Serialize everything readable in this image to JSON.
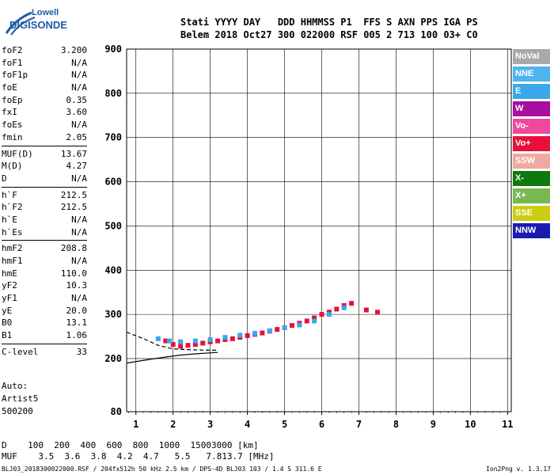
{
  "logo": {
    "line1": "Lowell",
    "line2": "DIGISONDE"
  },
  "header": {
    "labels": "Stati YYYY DAY   DDD HHMMSS P1  FFS S AXN PPS IGA PS",
    "values": "Belem 2018 Oct27 300 022000 RSF 005 2 713 100 03+ C0"
  },
  "params": [
    {
      "name": "foF2",
      "value": "3.200"
    },
    {
      "name": "foF1",
      "value": "N/A"
    },
    {
      "name": "foF1p",
      "value": "N/A"
    },
    {
      "name": "foE",
      "value": "N/A"
    },
    {
      "name": "foEp",
      "value": "0.35"
    },
    {
      "name": "fxI",
      "value": "3.60"
    },
    {
      "name": "foEs",
      "value": "N/A"
    },
    {
      "name": "fmin",
      "value": "2.05"
    },
    {
      "sep": true
    },
    {
      "name": "MUF(D)",
      "value": "13.67"
    },
    {
      "name": "M(D)",
      "value": "4.27"
    },
    {
      "name": "D",
      "value": "N/A"
    },
    {
      "sep": true
    },
    {
      "name": "h`F",
      "value": "212.5"
    },
    {
      "name": "h`F2",
      "value": "212.5"
    },
    {
      "name": "h`E",
      "value": "N/A"
    },
    {
      "name": "h`Es",
      "value": "N/A"
    },
    {
      "sep": true
    },
    {
      "name": "hmF2",
      "value": "208.8"
    },
    {
      "name": "hmF1",
      "value": "N/A"
    },
    {
      "name": "hmE",
      "value": "110.0"
    },
    {
      "name": "yF2",
      "value": "10.3"
    },
    {
      "name": "yF1",
      "value": "N/A"
    },
    {
      "name": "yE",
      "value": "20.0"
    },
    {
      "name": "B0",
      "value": "13.1"
    },
    {
      "name": "B1",
      "value": "1.06"
    },
    {
      "sep": true
    },
    {
      "name": "C-level",
      "value": "33"
    }
  ],
  "auto": [
    "Auto:",
    "Artist5",
    "500200"
  ],
  "legend": [
    {
      "label": "NoVal",
      "color": "#a9a9a9"
    },
    {
      "label": "NNE",
      "color": "#4fb4f0"
    },
    {
      "label": "E",
      "color": "#3aa8ea"
    },
    {
      "label": "W",
      "color": "#a80ea0"
    },
    {
      "label": "Vo-",
      "color": "#f0489a"
    },
    {
      "label": "Vo+",
      "color": "#e8103a"
    },
    {
      "label": "SSW",
      "color": "#f0a9a0"
    },
    {
      "label": "X-",
      "color": "#0e7a0e"
    },
    {
      "label": "X+",
      "color": "#78b850"
    },
    {
      "label": "SSE",
      "color": "#cccc10"
    },
    {
      "label": "NNW",
      "color": "#1a1ab0"
    }
  ],
  "muf_table": {
    "d_label": "D",
    "d_values": [
      "100",
      "200",
      "400",
      "600",
      "800",
      "1000",
      "1500",
      "3000 [km]"
    ],
    "muf_label": "MUF",
    "muf_values": [
      "3.5",
      "3.6",
      "3.8",
      "4.2",
      "4.7",
      "5.5",
      "7.8",
      "13.7 [MHz]"
    ]
  },
  "footer": "BLJ03_2018300022000.RSF / 204fx512h 50 kHz 2.5 km / DPS-4D BLJ03 103 / 1.4 S 311.6 E",
  "version": "Ion2Png v. 1.3.17",
  "chart_data": {
    "type": "scatter",
    "x_ticks": [
      1,
      2,
      3,
      4,
      5,
      6,
      7,
      8,
      9,
      10,
      11
    ],
    "y_ticks": [
      80,
      200,
      300,
      400,
      500,
      600,
      700,
      800,
      900
    ],
    "xlim": [
      0.75,
      11.1
    ],
    "ylim": [
      80,
      900
    ],
    "grid": true,
    "legend_position": "right",
    "traces": [
      {
        "name": "F2 O-trace",
        "color": "#e8103a",
        "points": [
          [
            1.8,
            240
          ],
          [
            2.0,
            232
          ],
          [
            2.2,
            228
          ],
          [
            2.4,
            230
          ],
          [
            2.6,
            232
          ],
          [
            2.8,
            235
          ],
          [
            3.0,
            238
          ],
          [
            3.2,
            240
          ],
          [
            3.4,
            243
          ],
          [
            3.6,
            245
          ],
          [
            3.8,
            248
          ],
          [
            4.0,
            252
          ],
          [
            4.2,
            255
          ],
          [
            4.4,
            258
          ],
          [
            4.6,
            262
          ],
          [
            4.8,
            266
          ],
          [
            5.0,
            270
          ],
          [
            5.2,
            275
          ],
          [
            5.4,
            280
          ],
          [
            5.6,
            285
          ],
          [
            5.8,
            292
          ],
          [
            6.0,
            300
          ],
          [
            6.2,
            305
          ],
          [
            6.4,
            312
          ],
          [
            6.6,
            320
          ],
          [
            6.8,
            325
          ],
          [
            7.2,
            310
          ],
          [
            7.5,
            305
          ]
        ]
      },
      {
        "name": "F2 X-trace",
        "color": "#3aa8ea",
        "points": [
          [
            1.6,
            245
          ],
          [
            1.9,
            240
          ],
          [
            2.2,
            238
          ],
          [
            2.6,
            240
          ],
          [
            3.0,
            243
          ],
          [
            3.4,
            248
          ],
          [
            3.8,
            253
          ],
          [
            4.2,
            257
          ],
          [
            4.6,
            263
          ],
          [
            5.0,
            270
          ],
          [
            5.4,
            276
          ],
          [
            5.8,
            285
          ],
          [
            6.2,
            300
          ],
          [
            6.6,
            315
          ]
        ]
      }
    ],
    "curves": [
      {
        "style": "dashed",
        "points": [
          [
            0.75,
            260
          ],
          [
            1.2,
            245
          ],
          [
            1.6,
            230
          ],
          [
            2.0,
            222
          ],
          [
            2.5,
            220
          ],
          [
            3.0,
            219
          ],
          [
            3.2,
            219
          ]
        ]
      },
      {
        "style": "solid",
        "points": [
          [
            0.75,
            190
          ],
          [
            1.5,
            200
          ],
          [
            2.2,
            208
          ],
          [
            2.8,
            212
          ],
          [
            3.2,
            214
          ]
        ]
      }
    ]
  }
}
